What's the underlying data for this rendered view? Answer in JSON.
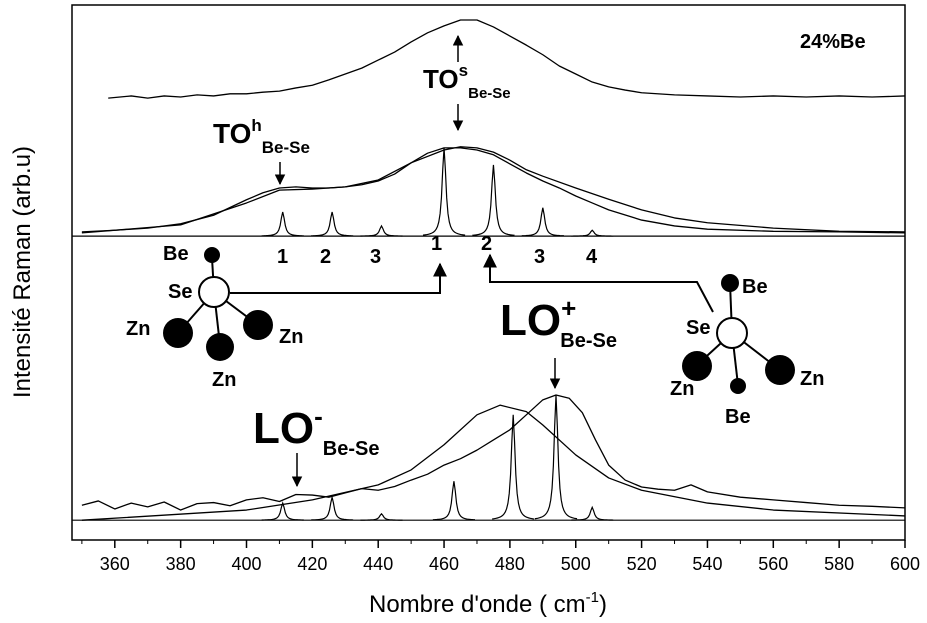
{
  "chart_data": {
    "type": "line",
    "xlabel": {
      "text": "Nombre d'onde ( cm",
      "sup": "-1",
      "tail": ")"
    },
    "ylabel": "Intensité Raman (arb.u)",
    "xlim": [
      347,
      600
    ],
    "xticks": [
      360,
      380,
      400,
      420,
      440,
      460,
      480,
      500,
      520,
      540,
      560,
      580,
      600
    ],
    "xminorticks": [
      350,
      370,
      390,
      410,
      430,
      450,
      470,
      490,
      510,
      530,
      550,
      570,
      590
    ],
    "ylim": [
      0,
      100
    ],
    "color": "#000000",
    "series": [
      {
        "style": "line",
        "x": [
          358,
          365,
          370,
          375,
          380,
          385,
          390,
          395,
          400,
          405,
          410,
          415,
          420,
          425,
          430,
          435,
          440,
          445,
          450,
          455,
          460,
          465,
          470,
          475,
          480,
          485,
          490,
          495,
          500,
          505,
          510,
          515,
          520,
          530,
          540,
          550,
          560,
          570,
          580,
          590,
          600
        ],
        "values": [
          82.6,
          83.0,
          82.6,
          83.0,
          82.8,
          83.2,
          83.0,
          83.4,
          83.4,
          83.7,
          83.9,
          84.5,
          85.0,
          86.0,
          87.1,
          88.2,
          89.7,
          91.2,
          93.1,
          94.8,
          96.1,
          97.2,
          97.2,
          95.9,
          94.2,
          92.5,
          90.7,
          88.6,
          87.1,
          85.6,
          84.7,
          84.1,
          83.6,
          83.2,
          83.0,
          82.8,
          83.0,
          82.8,
          83.0,
          82.8,
          83.0
        ]
      },
      {
        "style": "line",
        "x": [
          350,
          360,
          370,
          380,
          390,
          400,
          405,
          410,
          415,
          420,
          425,
          430,
          435,
          440,
          445,
          450,
          455,
          460,
          465,
          470,
          475,
          480,
          485,
          490,
          495,
          500,
          505,
          510,
          520,
          530,
          540,
          560,
          580,
          600
        ],
        "values": [
          57.6,
          57.9,
          58.3,
          59.1,
          60.7,
          63.6,
          64.9,
          65.8,
          66.0,
          65.8,
          65.8,
          66.0,
          66.4,
          67.1,
          68.4,
          70.5,
          72.3,
          73.3,
          73.3,
          72.9,
          72.0,
          70.3,
          68.6,
          67.1,
          65.8,
          64.3,
          63.0,
          61.7,
          59.8,
          58.7,
          58.1,
          57.7,
          57.6,
          57.4
        ]
      },
      {
        "style": "line",
        "x": [
          350,
          380,
          400,
          410,
          420,
          430,
          440,
          450,
          460,
          465,
          470,
          475,
          480,
          485,
          490,
          500,
          510,
          520,
          530,
          540,
          560,
          580,
          600
        ],
        "values": [
          57.4,
          58.9,
          63.0,
          65.4,
          65.6,
          66.0,
          67.3,
          70.5,
          72.9,
          73.5,
          73.3,
          72.5,
          71.0,
          69.2,
          68.0,
          65.8,
          63.7,
          61.7,
          60.2,
          59.3,
          58.3,
          57.7,
          57.6
        ]
      },
      {
        "style": "spikes",
        "baseline": 56.8,
        "x": [
          411,
          426,
          441,
          460,
          475,
          490,
          505
        ],
        "values": [
          61.3,
          61.3,
          58.7,
          73.3,
          70.1,
          62.1,
          57.9
        ]
      },
      {
        "style": "line",
        "x": [
          350,
          355,
          360,
          365,
          370,
          375,
          380,
          385,
          390,
          395,
          400,
          405,
          410,
          415,
          420,
          425,
          430,
          435,
          440,
          445,
          450,
          455,
          460,
          465,
          470,
          475,
          480,
          485,
          490,
          494,
          498,
          502,
          506,
          510,
          515,
          520,
          525,
          530,
          535,
          540,
          550,
          560,
          570,
          580,
          590,
          600
        ],
        "values": [
          6.5,
          7.3,
          5.8,
          6.9,
          6.2,
          7.1,
          5.6,
          6.8,
          7.0,
          6.4,
          7.5,
          7.9,
          7.2,
          8.5,
          8.4,
          8.0,
          8.8,
          9.6,
          9.3,
          10.0,
          11.2,
          12.3,
          14.0,
          15.2,
          16.8,
          18.7,
          20.6,
          23.4,
          26.2,
          27.1,
          26.5,
          23.8,
          18.7,
          14.0,
          11.2,
          9.9,
          9.5,
          9.3,
          10.3,
          9.0,
          8.0,
          7.5,
          7.0,
          6.5,
          6.3,
          6.0
        ]
      },
      {
        "style": "line",
        "x": [
          350,
          400,
          420,
          440,
          450,
          460,
          470,
          477,
          485,
          490,
          500,
          510,
          520,
          540,
          560,
          600
        ],
        "values": [
          3.7,
          5.6,
          7.5,
          10.3,
          13.1,
          17.8,
          23.4,
          25.2,
          24.0,
          21.5,
          15.9,
          11.6,
          9.3,
          6.9,
          5.6,
          4.5
        ]
      },
      {
        "style": "spikes",
        "baseline": 3.7,
        "x": [
          411,
          426,
          441,
          463,
          481,
          494,
          505
        ],
        "values": [
          6.9,
          8.0,
          4.9,
          11.0,
          23.4,
          27.1,
          6.1
        ]
      }
    ],
    "annotations": {
      "sample": "24%Be",
      "to_s": {
        "text": "TO",
        "sup": "s",
        "sub": "Be-Se"
      },
      "to_h": {
        "text": "TO",
        "sup": "h",
        "sub": "Be-Se"
      },
      "lo_plus": {
        "text": "LO",
        "sup": "+",
        "sub": "Be-Se"
      },
      "lo_minus": {
        "text": "LO",
        "sup": "-",
        "sub": "Be-Se"
      }
    },
    "peak_labels": [
      "1",
      "2",
      "3",
      "1",
      "2",
      "3",
      "4"
    ],
    "atom_labels": [
      "Be",
      "Se",
      "Zn",
      "Zn",
      "Zn",
      "Be",
      "Se",
      "Zn",
      "Zn",
      "Be"
    ]
  }
}
